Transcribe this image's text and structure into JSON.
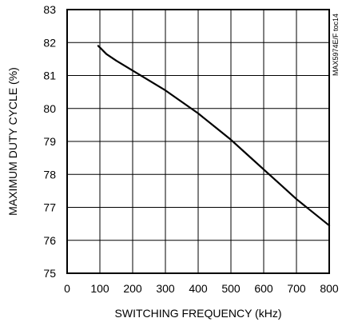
{
  "chart_data": {
    "type": "line",
    "title": "",
    "xlabel": "SWITCHING FREQUENCY (kHz)",
    "ylabel": "MAXIMUM DUTY CYCLE (%)",
    "watermark": "MAX5974E/F toc14",
    "xlim": [
      0,
      800
    ],
    "ylim": [
      75,
      83
    ],
    "xticks": [
      0,
      100,
      200,
      300,
      400,
      500,
      600,
      700,
      800
    ],
    "yticks": [
      75,
      76,
      77,
      78,
      79,
      80,
      81,
      82,
      83
    ],
    "grid": true,
    "series": [
      {
        "x": [
          95,
          100,
          120,
          150,
          200,
          250,
          300,
          350,
          400,
          450,
          500,
          550,
          600,
          650,
          700,
          750,
          800
        ],
        "y": [
          81.9,
          81.85,
          81.65,
          81.45,
          81.15,
          80.85,
          80.55,
          80.2,
          79.85,
          79.45,
          79.05,
          78.6,
          78.15,
          77.7,
          77.25,
          76.85,
          76.45
        ]
      }
    ]
  }
}
